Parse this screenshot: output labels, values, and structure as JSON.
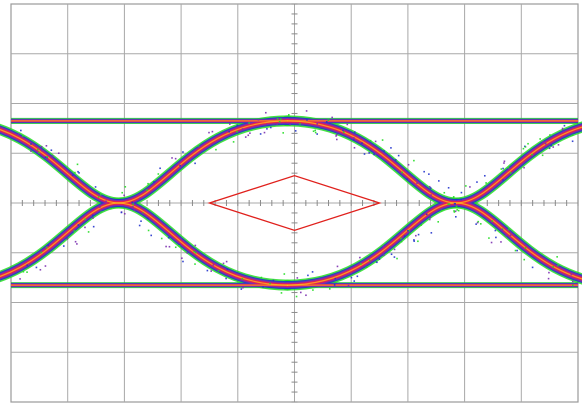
{
  "chart_data": {
    "type": "scatter",
    "subtype": "eye-diagram",
    "title": "",
    "xlabel": "",
    "ylabel": "",
    "grid": true,
    "grid_divisions": {
      "horizontal": 10,
      "vertical": 8
    },
    "minor_ticks_per_division": 5,
    "center_axis_ticks": true,
    "x_range": [
      0,
      10
    ],
    "y_range": [
      -4,
      4
    ],
    "logic_levels": {
      "high": 1.65,
      "low": -1.65,
      "trace_spread": 0.12
    },
    "crossing_points": [
      {
        "x": 1.9,
        "y": 0.0
      },
      {
        "x": 7.85,
        "y": 0.0
      }
    ],
    "eye_mask": {
      "shape": "diamond",
      "vertices": [
        {
          "x": 3.5,
          "y": 0.0
        },
        {
          "x": 5.0,
          "y": 0.55
        },
        {
          "x": 6.5,
          "y": 0.0
        },
        {
          "x": 5.0,
          "y": -0.55
        }
      ],
      "color": "#e0201c"
    },
    "density_colormap": [
      "#22dd22",
      "#2233cc",
      "#7b2fb0",
      "#d61a6e",
      "#ff2a1f",
      "#ffe126"
    ]
  }
}
